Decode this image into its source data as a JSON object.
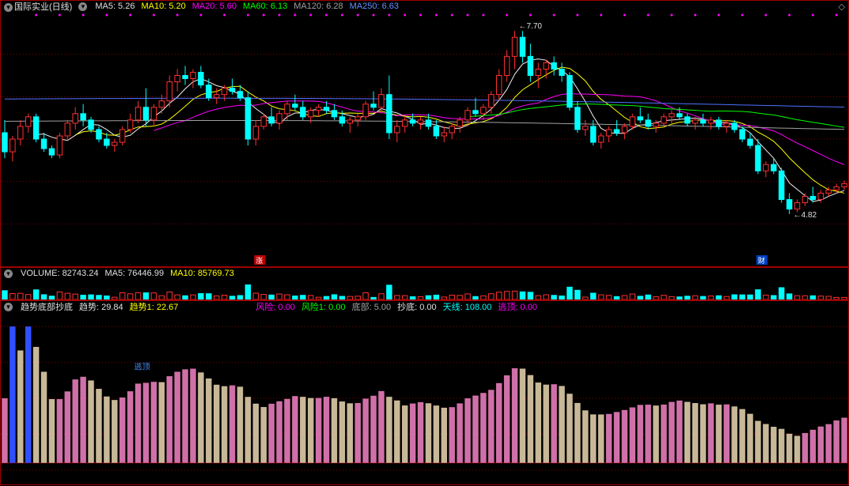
{
  "colors": {
    "bg": "#000000",
    "border": "#a00000",
    "grid_dot": "#800000",
    "candle_up_fill": "#000000",
    "candle_up_border": "#ff3030",
    "candle_down": "#00ffff",
    "ma5": "#f0f0f0",
    "ma10": "#ffff00",
    "ma20": "#ff00ff",
    "ma60": "#00ff00",
    "ma120": "#a0a0a0",
    "ma250": "#5070ff",
    "vol_bar_up": "#ff3030",
    "vol_bar_down": "#00ffff",
    "trend_pink": "#d070a8",
    "trend_tan": "#c8b898",
    "trend_yellow": "#ffff00",
    "trend_blue": "#3050ff",
    "trend_magenta": "#ff00ff",
    "dot_marker": "#ff00ff"
  },
  "main_panel": {
    "title": "国际实业(日线)",
    "ma_labels": [
      {
        "text": "MA5: 5.26",
        "color": "#f0f0f0"
      },
      {
        "text": "MA10: 5.20",
        "color": "#ffff00"
      },
      {
        "text": "MA20: 5.60",
        "color": "#ff00ff"
      },
      {
        "text": "MA60: 6.13",
        "color": "#00ff00"
      },
      {
        "text": "MA120: 6.28",
        "color": "#a0a0a0"
      },
      {
        "text": "MA250: 6.63",
        "color": "#5070ff"
      }
    ],
    "high_label": "7.70",
    "low_label": "4.82",
    "tag_left": "涨",
    "tag_right": "财",
    "y_min": 4.0,
    "y_max": 8.0,
    "candles": [
      {
        "o": 6.1,
        "h": 6.3,
        "l": 5.7,
        "c": 5.8,
        "dir": "d"
      },
      {
        "o": 5.8,
        "h": 6.05,
        "l": 5.65,
        "c": 6.0,
        "dir": "u"
      },
      {
        "o": 6.0,
        "h": 6.3,
        "l": 5.9,
        "c": 6.2,
        "dir": "u"
      },
      {
        "o": 6.2,
        "h": 6.4,
        "l": 6.1,
        "c": 6.35,
        "dir": "u"
      },
      {
        "o": 6.35,
        "h": 6.4,
        "l": 5.95,
        "c": 6.0,
        "dir": "d"
      },
      {
        "o": 6.0,
        "h": 6.1,
        "l": 5.8,
        "c": 5.85,
        "dir": "d"
      },
      {
        "o": 5.85,
        "h": 5.9,
        "l": 5.7,
        "c": 5.75,
        "dir": "d"
      },
      {
        "o": 5.75,
        "h": 6.1,
        "l": 5.7,
        "c": 6.05,
        "dir": "u"
      },
      {
        "o": 6.05,
        "h": 6.3,
        "l": 6.0,
        "c": 6.25,
        "dir": "u"
      },
      {
        "o": 6.25,
        "h": 6.5,
        "l": 6.15,
        "c": 6.4,
        "dir": "u"
      },
      {
        "o": 6.4,
        "h": 6.55,
        "l": 6.2,
        "c": 6.3,
        "dir": "d"
      },
      {
        "o": 6.3,
        "h": 6.35,
        "l": 6.1,
        "c": 6.15,
        "dir": "d"
      },
      {
        "o": 6.15,
        "h": 6.2,
        "l": 5.95,
        "c": 6.0,
        "dir": "d"
      },
      {
        "o": 6.0,
        "h": 6.1,
        "l": 5.85,
        "c": 5.9,
        "dir": "d"
      },
      {
        "o": 5.9,
        "h": 6.0,
        "l": 5.8,
        "c": 5.95,
        "dir": "u"
      },
      {
        "o": 5.95,
        "h": 6.2,
        "l": 5.9,
        "c": 6.15,
        "dir": "u"
      },
      {
        "o": 6.15,
        "h": 6.4,
        "l": 6.1,
        "c": 6.3,
        "dir": "u"
      },
      {
        "o": 6.3,
        "h": 6.6,
        "l": 6.25,
        "c": 6.5,
        "dir": "u"
      },
      {
        "o": 6.5,
        "h": 6.8,
        "l": 6.2,
        "c": 6.3,
        "dir": "d"
      },
      {
        "o": 6.3,
        "h": 6.55,
        "l": 6.2,
        "c": 6.5,
        "dir": "u"
      },
      {
        "o": 6.5,
        "h": 6.7,
        "l": 6.4,
        "c": 6.6,
        "dir": "u"
      },
      {
        "o": 6.6,
        "h": 7.0,
        "l": 6.5,
        "c": 6.9,
        "dir": "u"
      },
      {
        "o": 6.9,
        "h": 7.1,
        "l": 6.75,
        "c": 7.0,
        "dir": "u"
      },
      {
        "o": 7.0,
        "h": 7.15,
        "l": 6.85,
        "c": 6.95,
        "dir": "d"
      },
      {
        "o": 6.95,
        "h": 7.1,
        "l": 6.8,
        "c": 7.05,
        "dir": "u"
      },
      {
        "o": 7.05,
        "h": 7.15,
        "l": 6.8,
        "c": 6.85,
        "dir": "d"
      },
      {
        "o": 6.85,
        "h": 6.95,
        "l": 6.6,
        "c": 6.65,
        "dir": "d"
      },
      {
        "o": 6.65,
        "h": 6.8,
        "l": 6.55,
        "c": 6.7,
        "dir": "u"
      },
      {
        "o": 6.7,
        "h": 6.85,
        "l": 6.6,
        "c": 6.8,
        "dir": "u"
      },
      {
        "o": 6.8,
        "h": 6.95,
        "l": 6.7,
        "c": 6.75,
        "dir": "d"
      },
      {
        "o": 6.75,
        "h": 6.85,
        "l": 6.6,
        "c": 6.65,
        "dir": "d"
      },
      {
        "o": 6.65,
        "h": 6.75,
        "l": 5.9,
        "c": 6.0,
        "dir": "d"
      },
      {
        "o": 6.0,
        "h": 6.3,
        "l": 5.9,
        "c": 6.2,
        "dir": "u"
      },
      {
        "o": 6.2,
        "h": 6.4,
        "l": 6.15,
        "c": 6.35,
        "dir": "u"
      },
      {
        "o": 6.35,
        "h": 6.5,
        "l": 6.2,
        "c": 6.25,
        "dir": "d"
      },
      {
        "o": 6.25,
        "h": 6.45,
        "l": 6.15,
        "c": 6.4,
        "dir": "u"
      },
      {
        "o": 6.4,
        "h": 6.6,
        "l": 6.3,
        "c": 6.55,
        "dir": "u"
      },
      {
        "o": 6.55,
        "h": 6.7,
        "l": 6.45,
        "c": 6.5,
        "dir": "d"
      },
      {
        "o": 6.5,
        "h": 6.6,
        "l": 6.3,
        "c": 6.35,
        "dir": "d"
      },
      {
        "o": 6.35,
        "h": 6.5,
        "l": 6.25,
        "c": 6.45,
        "dir": "u"
      },
      {
        "o": 6.45,
        "h": 6.55,
        "l": 6.35,
        "c": 6.5,
        "dir": "u"
      },
      {
        "o": 6.5,
        "h": 6.6,
        "l": 6.4,
        "c": 6.45,
        "dir": "d"
      },
      {
        "o": 6.45,
        "h": 6.55,
        "l": 6.3,
        "c": 6.35,
        "dir": "d"
      },
      {
        "o": 6.35,
        "h": 6.45,
        "l": 6.2,
        "c": 6.25,
        "dir": "d"
      },
      {
        "o": 6.25,
        "h": 6.35,
        "l": 6.1,
        "c": 6.3,
        "dir": "u"
      },
      {
        "o": 6.3,
        "h": 6.4,
        "l": 6.2,
        "c": 6.35,
        "dir": "u"
      },
      {
        "o": 6.35,
        "h": 6.6,
        "l": 6.3,
        "c": 6.55,
        "dir": "u"
      },
      {
        "o": 6.55,
        "h": 6.75,
        "l": 6.45,
        "c": 6.5,
        "dir": "d"
      },
      {
        "o": 6.5,
        "h": 6.8,
        "l": 6.4,
        "c": 6.7,
        "dir": "u"
      },
      {
        "o": 6.7,
        "h": 7.0,
        "l": 6.0,
        "c": 6.1,
        "dir": "d"
      },
      {
        "o": 6.1,
        "h": 6.3,
        "l": 5.95,
        "c": 6.2,
        "dir": "u"
      },
      {
        "o": 6.2,
        "h": 6.35,
        "l": 6.1,
        "c": 6.3,
        "dir": "u"
      },
      {
        "o": 6.3,
        "h": 6.4,
        "l": 6.2,
        "c": 6.25,
        "dir": "d"
      },
      {
        "o": 6.25,
        "h": 6.35,
        "l": 6.15,
        "c": 6.3,
        "dir": "u"
      },
      {
        "o": 6.3,
        "h": 6.4,
        "l": 6.15,
        "c": 6.2,
        "dir": "d"
      },
      {
        "o": 6.2,
        "h": 6.3,
        "l": 6.0,
        "c": 6.05,
        "dir": "d"
      },
      {
        "o": 6.05,
        "h": 6.2,
        "l": 5.95,
        "c": 6.1,
        "dir": "u"
      },
      {
        "o": 6.1,
        "h": 6.25,
        "l": 6.0,
        "c": 6.2,
        "dir": "u"
      },
      {
        "o": 6.2,
        "h": 6.35,
        "l": 6.1,
        "c": 6.3,
        "dir": "u"
      },
      {
        "o": 6.3,
        "h": 6.5,
        "l": 6.2,
        "c": 6.45,
        "dir": "u"
      },
      {
        "o": 6.45,
        "h": 6.65,
        "l": 6.35,
        "c": 6.4,
        "dir": "d"
      },
      {
        "o": 6.4,
        "h": 6.55,
        "l": 6.3,
        "c": 6.5,
        "dir": "u"
      },
      {
        "o": 6.5,
        "h": 6.75,
        "l": 6.4,
        "c": 6.7,
        "dir": "u"
      },
      {
        "o": 6.7,
        "h": 7.1,
        "l": 6.6,
        "c": 7.0,
        "dir": "u"
      },
      {
        "o": 7.0,
        "h": 7.4,
        "l": 6.9,
        "c": 7.3,
        "dir": "u"
      },
      {
        "o": 7.3,
        "h": 7.7,
        "l": 7.1,
        "c": 7.6,
        "dir": "u"
      },
      {
        "o": 7.6,
        "h": 7.7,
        "l": 7.2,
        "c": 7.3,
        "dir": "d"
      },
      {
        "o": 7.3,
        "h": 7.5,
        "l": 6.9,
        "c": 7.0,
        "dir": "d"
      },
      {
        "o": 7.0,
        "h": 7.2,
        "l": 6.8,
        "c": 7.1,
        "dir": "u"
      },
      {
        "o": 7.1,
        "h": 7.25,
        "l": 6.95,
        "c": 7.2,
        "dir": "u"
      },
      {
        "o": 7.2,
        "h": 7.3,
        "l": 7.0,
        "c": 7.1,
        "dir": "d"
      },
      {
        "o": 7.1,
        "h": 7.2,
        "l": 6.9,
        "c": 7.0,
        "dir": "d"
      },
      {
        "o": 7.0,
        "h": 7.05,
        "l": 6.45,
        "c": 6.5,
        "dir": "d"
      },
      {
        "o": 6.5,
        "h": 6.6,
        "l": 6.1,
        "c": 6.15,
        "dir": "d"
      },
      {
        "o": 6.15,
        "h": 6.3,
        "l": 6.05,
        "c": 6.2,
        "dir": "u"
      },
      {
        "o": 6.2,
        "h": 6.3,
        "l": 5.9,
        "c": 5.95,
        "dir": "d"
      },
      {
        "o": 5.95,
        "h": 6.1,
        "l": 5.85,
        "c": 6.05,
        "dir": "u"
      },
      {
        "o": 6.05,
        "h": 6.2,
        "l": 5.95,
        "c": 6.15,
        "dir": "u"
      },
      {
        "o": 6.15,
        "h": 6.3,
        "l": 6.05,
        "c": 6.1,
        "dir": "d"
      },
      {
        "o": 6.1,
        "h": 6.25,
        "l": 6.0,
        "c": 6.2,
        "dir": "u"
      },
      {
        "o": 6.2,
        "h": 6.4,
        "l": 6.15,
        "c": 6.35,
        "dir": "u"
      },
      {
        "o": 6.35,
        "h": 6.5,
        "l": 6.25,
        "c": 6.3,
        "dir": "d"
      },
      {
        "o": 6.3,
        "h": 6.4,
        "l": 6.15,
        "c": 6.2,
        "dir": "d"
      },
      {
        "o": 6.2,
        "h": 6.3,
        "l": 6.1,
        "c": 6.25,
        "dir": "u"
      },
      {
        "o": 6.25,
        "h": 6.4,
        "l": 6.2,
        "c": 6.35,
        "dir": "u"
      },
      {
        "o": 6.35,
        "h": 6.45,
        "l": 6.25,
        "c": 6.4,
        "dir": "u"
      },
      {
        "o": 6.4,
        "h": 6.5,
        "l": 6.3,
        "c": 6.35,
        "dir": "d"
      },
      {
        "o": 6.35,
        "h": 6.4,
        "l": 6.2,
        "c": 6.25,
        "dir": "d"
      },
      {
        "o": 6.25,
        "h": 6.35,
        "l": 6.15,
        "c": 6.3,
        "dir": "u"
      },
      {
        "o": 6.3,
        "h": 6.4,
        "l": 6.2,
        "c": 6.25,
        "dir": "d"
      },
      {
        "o": 6.25,
        "h": 6.35,
        "l": 6.15,
        "c": 6.3,
        "dir": "u"
      },
      {
        "o": 6.3,
        "h": 6.35,
        "l": 6.15,
        "c": 6.2,
        "dir": "d"
      },
      {
        "o": 6.2,
        "h": 6.3,
        "l": 6.1,
        "c": 6.25,
        "dir": "u"
      },
      {
        "o": 6.25,
        "h": 6.3,
        "l": 6.1,
        "c": 6.15,
        "dir": "d"
      },
      {
        "o": 6.15,
        "h": 6.2,
        "l": 5.95,
        "c": 6.0,
        "dir": "d"
      },
      {
        "o": 6.0,
        "h": 6.1,
        "l": 5.85,
        "c": 5.9,
        "dir": "d"
      },
      {
        "o": 5.9,
        "h": 6.0,
        "l": 5.45,
        "c": 5.5,
        "dir": "d"
      },
      {
        "o": 5.5,
        "h": 5.65,
        "l": 5.4,
        "c": 5.6,
        "dir": "u"
      },
      {
        "o": 5.6,
        "h": 5.7,
        "l": 5.45,
        "c": 5.5,
        "dir": "d"
      },
      {
        "o": 5.5,
        "h": 5.55,
        "l": 5.0,
        "c": 5.05,
        "dir": "d"
      },
      {
        "o": 5.05,
        "h": 5.15,
        "l": 4.82,
        "c": 4.9,
        "dir": "d"
      },
      {
        "o": 4.9,
        "h": 5.05,
        "l": 4.85,
        "c": 5.0,
        "dir": "u"
      },
      {
        "o": 5.0,
        "h": 5.15,
        "l": 4.95,
        "c": 5.1,
        "dir": "u"
      },
      {
        "o": 5.1,
        "h": 5.25,
        "l": 5.0,
        "c": 5.05,
        "dir": "d"
      },
      {
        "o": 5.05,
        "h": 5.2,
        "l": 5.0,
        "c": 5.15,
        "dir": "u"
      },
      {
        "o": 5.15,
        "h": 5.25,
        "l": 5.1,
        "c": 5.2,
        "dir": "u"
      },
      {
        "o": 5.2,
        "h": 5.3,
        "l": 5.15,
        "c": 5.25,
        "dir": "u"
      },
      {
        "o": 5.25,
        "h": 5.35,
        "l": 5.2,
        "c": 5.3,
        "dir": "u"
      }
    ]
  },
  "volume_panel": {
    "text": "VOLUME: 82743.24",
    "ma5_text": "MA5: 76446.99",
    "ma10_text": "MA10: 85769.73",
    "max": 120
  },
  "trend_panel": {
    "title": "趋势底部抄底",
    "labels": [
      {
        "text": "趋势: 29.84",
        "color": "#f0f0f0"
      },
      {
        "text": "趋势1: 22.67",
        "color": "#ffff00"
      },
      {
        "text": "风险: 0.00",
        "color": "#ff00ff"
      },
      {
        "text": "风险1: 0.00",
        "color": "#00ff00"
      },
      {
        "text": "底部: 5.00",
        "color": "#a0a0a0"
      },
      {
        "text": "抄底: 0.00",
        "color": "#f0f0f0"
      },
      {
        "text": "天线: 108.00",
        "color": "#00ffff"
      },
      {
        "text": "逃顶: 0.00",
        "color": "#ff00ff"
      }
    ],
    "y_min": -10,
    "y_max": 110
  }
}
